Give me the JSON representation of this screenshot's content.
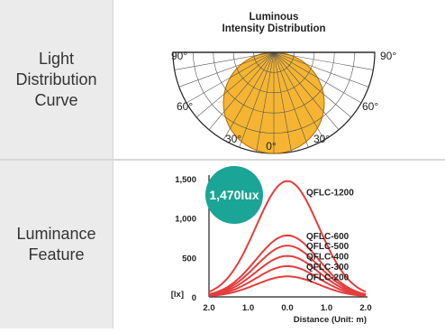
{
  "rows": [
    {
      "label_lines": [
        "Light",
        "Distribution",
        "Curve"
      ]
    },
    {
      "label_lines": [
        "Luminance",
        "Feature"
      ]
    }
  ],
  "polar": {
    "title_lines": [
      "Luminous",
      "Intensity Distribution"
    ],
    "angle_labels": {
      "left_90": "90°",
      "right_90": "90°",
      "left_60": "60°",
      "right_60": "60°",
      "left_30": "30°",
      "right_30": "30°",
      "bottom_0": "0°"
    },
    "fill_color": "#f5b532",
    "stroke_color": "#b86a00"
  },
  "chart_data": {
    "type": "line",
    "x": [
      -2.0,
      -1.5,
      -1.0,
      -0.5,
      0.0,
      0.5,
      1.0,
      1.5,
      2.0
    ],
    "x_tick_labels": [
      "2.0",
      "1.0",
      "0.0",
      "1.0",
      "2.0"
    ],
    "y_tick_labels": [
      "1,500",
      "1,000",
      "500",
      "0"
    ],
    "y_unit": "[lx]",
    "xlabel": "Distance (Unit: m)",
    "ylim": [
      0,
      1500
    ],
    "xlim": [
      -2,
      2
    ],
    "peak_badge": "1,470lux",
    "badge_color": "#1aa596",
    "line_color": "#e63c3c",
    "series": [
      {
        "name": "QFLC-1200",
        "peak": 1470
      },
      {
        "name": "QFLC-600",
        "peak": 780
      },
      {
        "name": "QFLC-500",
        "peak": 650
      },
      {
        "name": "QFLC-400",
        "peak": 520
      },
      {
        "name": "QFLC-300",
        "peak": 390
      },
      {
        "name": "QFLC-200",
        "peak": 260
      }
    ]
  }
}
